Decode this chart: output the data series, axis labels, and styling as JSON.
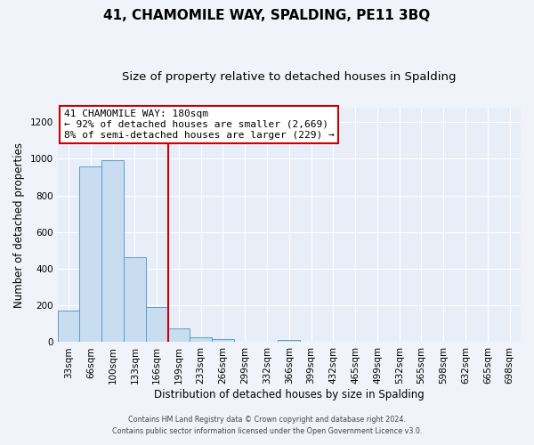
{
  "title": "41, CHAMOMILE WAY, SPALDING, PE11 3BQ",
  "subtitle": "Size of property relative to detached houses in Spalding",
  "xlabel": "Distribution of detached houses by size in Spalding",
  "ylabel": "Number of detached properties",
  "bar_labels": [
    "33sqm",
    "66sqm",
    "100sqm",
    "133sqm",
    "166sqm",
    "199sqm",
    "233sqm",
    "266sqm",
    "299sqm",
    "332sqm",
    "366sqm",
    "399sqm",
    "432sqm",
    "465sqm",
    "499sqm",
    "532sqm",
    "565sqm",
    "598sqm",
    "632sqm",
    "665sqm",
    "698sqm"
  ],
  "bar_values": [
    170,
    960,
    990,
    465,
    190,
    75,
    25,
    15,
    0,
    0,
    10,
    0,
    0,
    0,
    0,
    0,
    0,
    0,
    0,
    0,
    0
  ],
  "bar_color": "#c9ddf0",
  "bar_edge_color": "#5b9bd5",
  "property_line_x": 4.5,
  "property_label": "41 CHAMOMILE WAY: 180sqm",
  "annotation_line1": "← 92% of detached houses are smaller (2,669)",
  "annotation_line2": "8% of semi-detached houses are larger (229) →",
  "annotation_box_color": "#ffffff",
  "annotation_box_edge": "#cc0000",
  "vline_color": "#cc0000",
  "ylim": [
    0,
    1280
  ],
  "yticks": [
    0,
    200,
    400,
    600,
    800,
    1000,
    1200
  ],
  "footer1": "Contains HM Land Registry data © Crown copyright and database right 2024.",
  "footer2": "Contains public sector information licensed under the Open Government Licence v3.0.",
  "bg_color": "#f0f4fa",
  "plot_bg_color": "#e8eef8",
  "grid_color": "#ffffff",
  "title_fontsize": 11,
  "subtitle_fontsize": 9.5
}
